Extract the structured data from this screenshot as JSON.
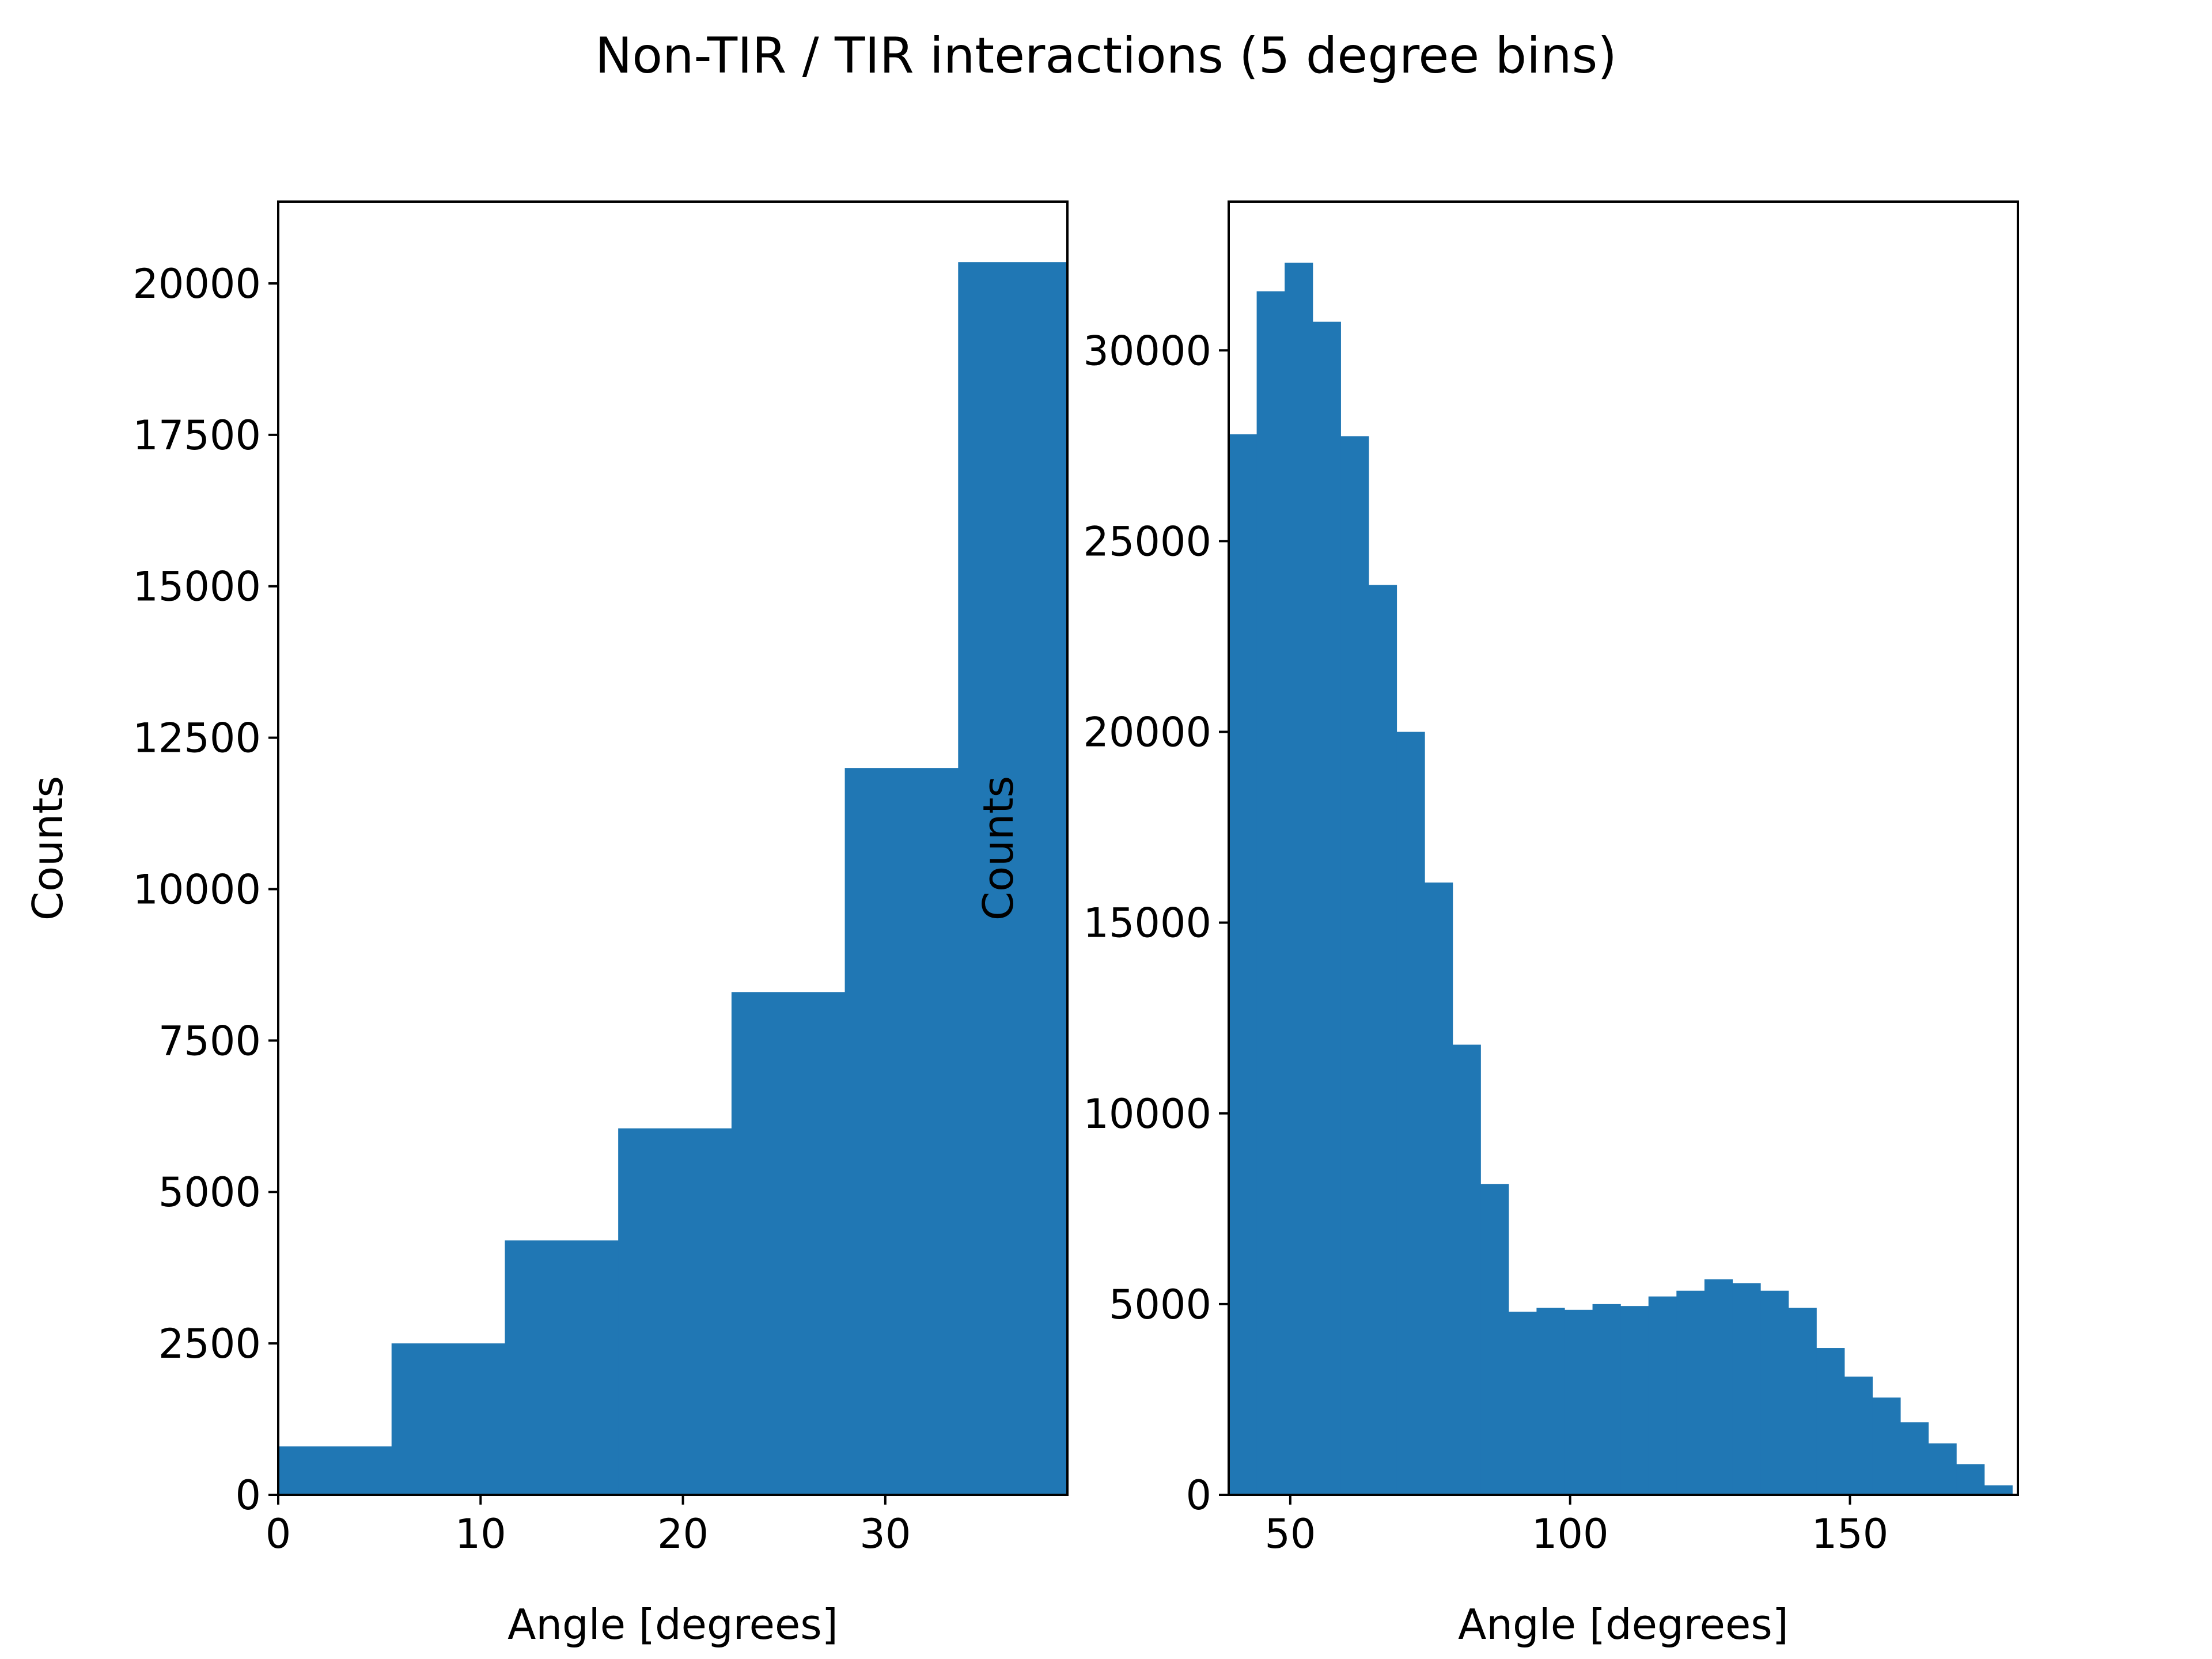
{
  "title": "Non-TIR / TIR interactions (5 degree bins)",
  "colors": {
    "bar": "#2077b4",
    "axes": "#000000",
    "background": "#ffffff"
  },
  "chart_data": [
    {
      "type": "bar",
      "subtype": "histogram",
      "xlabel": "Angle [degrees]",
      "ylabel": "Counts",
      "xlim": [
        0,
        39
      ],
      "ylim": [
        0,
        21350
      ],
      "xticks": [
        0,
        10,
        20,
        30
      ],
      "xtick_labels": [
        "0",
        "10",
        "20",
        "30"
      ],
      "yticks": [
        0,
        2500,
        5000,
        7500,
        10000,
        12500,
        15000,
        17500,
        20000
      ],
      "ytick_labels": [
        "0",
        "2500",
        "5000",
        "7500",
        "10000",
        "12500",
        "15000",
        "17500",
        "20000"
      ],
      "bin_edges": [
        0,
        5.6,
        11.2,
        16.8,
        22.4,
        28,
        33.6,
        39
      ],
      "values": [
        800,
        2500,
        4200,
        6050,
        8300,
        12000,
        20350
      ],
      "grid": false,
      "legend": "none"
    },
    {
      "type": "bar",
      "subtype": "histogram",
      "xlabel": "Angle [degrees]",
      "ylabel": "Counts",
      "xlim": [
        39,
        180
      ],
      "ylim": [
        0,
        33900
      ],
      "xticks": [
        50,
        100,
        150
      ],
      "xtick_labels": [
        "50",
        "100",
        "150"
      ],
      "yticks": [
        0,
        5000,
        10000,
        15000,
        20000,
        25000,
        30000
      ],
      "ytick_labels": [
        "0",
        "5000",
        "10000",
        "15000",
        "20000",
        "25000",
        "30000"
      ],
      "bin_edges": [
        39,
        44,
        49,
        54,
        59,
        64,
        69,
        74,
        79,
        84,
        89,
        94,
        99,
        104,
        109,
        114,
        119,
        124,
        129,
        134,
        139,
        144,
        149,
        154,
        159,
        164,
        169,
        174,
        179
      ],
      "values": [
        27800,
        31550,
        32300,
        30750,
        27750,
        23850,
        20000,
        16050,
        11800,
        8150,
        4800,
        4900,
        4850,
        5000,
        4950,
        5200,
        5350,
        5650,
        5550,
        5350,
        4900,
        3850,
        3100,
        2550,
        1900,
        1350,
        800,
        250
      ],
      "grid": false,
      "legend": "none"
    }
  ]
}
